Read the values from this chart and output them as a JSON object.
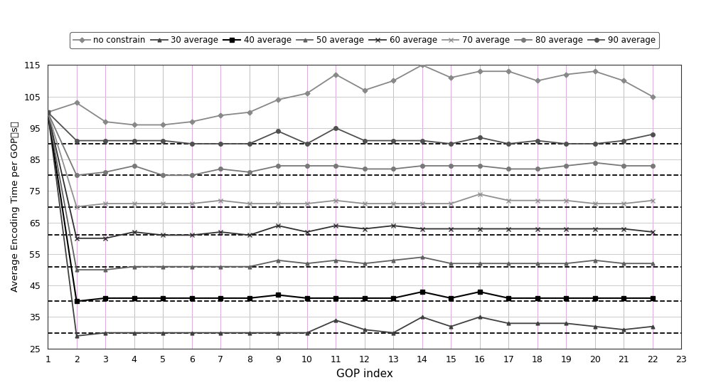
{
  "title": "",
  "xlabel": "GOP index",
  "ylabel": "Average Encoding Time per GOP（s）",
  "xlim": [
    1,
    23
  ],
  "ylim": [
    25,
    115
  ],
  "xticks": [
    1,
    2,
    3,
    4,
    5,
    6,
    7,
    8,
    9,
    10,
    11,
    12,
    13,
    14,
    15,
    16,
    17,
    18,
    19,
    20,
    21,
    22,
    23
  ],
  "yticks": [
    25,
    35,
    45,
    55,
    65,
    75,
    85,
    95,
    105,
    115
  ],
  "series": {
    "no constrain": {
      "color": "#888888",
      "linewidth": 1.3,
      "linestyle": "-",
      "marker": "D",
      "markersize": 3.5,
      "dashed_avg": null,
      "values": [
        100,
        103,
        97,
        96,
        96,
        97,
        99,
        100,
        104,
        106,
        112,
        107,
        110,
        115,
        111,
        113,
        113,
        110,
        112,
        113,
        110,
        105
      ]
    },
    "30 average": {
      "color": "#404040",
      "linewidth": 1.3,
      "linestyle": "-",
      "marker": "^",
      "markersize": 3.5,
      "dashed_avg": 30,
      "values": [
        100,
        29,
        30,
        30,
        30,
        30,
        30,
        30,
        30,
        30,
        34,
        31,
        30,
        35,
        32,
        35,
        33,
        33,
        33,
        32,
        31,
        32
      ]
    },
    "40 average": {
      "color": "#000000",
      "linewidth": 1.5,
      "linestyle": "-",
      "marker": "s",
      "markersize": 4.5,
      "dashed_avg": 40,
      "values": [
        100,
        40,
        41,
        41,
        41,
        41,
        41,
        41,
        42,
        41,
        41,
        41,
        41,
        43,
        41,
        43,
        41,
        41,
        41,
        41,
        41,
        41
      ]
    },
    "50 average": {
      "color": "#606060",
      "linewidth": 1.3,
      "linestyle": "-",
      "marker": "^",
      "markersize": 3.5,
      "dashed_avg": 51,
      "values": [
        100,
        50,
        50,
        51,
        51,
        51,
        51,
        51,
        53,
        52,
        53,
        52,
        53,
        54,
        52,
        52,
        52,
        52,
        52,
        53,
        52,
        52
      ]
    },
    "60 average": {
      "color": "#303030",
      "linewidth": 1.3,
      "linestyle": "-",
      "marker": "x",
      "markersize": 4,
      "dashed_avg": 61,
      "values": [
        100,
        60,
        60,
        62,
        61,
        61,
        62,
        61,
        64,
        62,
        64,
        63,
        64,
        63,
        63,
        63,
        63,
        63,
        63,
        63,
        63,
        62
      ]
    },
    "70 average": {
      "color": "#909090",
      "linewidth": 1.3,
      "linestyle": "-",
      "marker": "x",
      "markersize": 4,
      "dashed_avg": 70,
      "values": [
        100,
        70,
        71,
        71,
        71,
        71,
        72,
        71,
        71,
        71,
        72,
        71,
        71,
        71,
        71,
        74,
        72,
        72,
        72,
        71,
        71,
        72
      ]
    },
    "80 average": {
      "color": "#787878",
      "linewidth": 1.3,
      "linestyle": "-",
      "marker": "o",
      "markersize": 4,
      "dashed_avg": 80,
      "values": [
        100,
        80,
        81,
        83,
        80,
        80,
        82,
        81,
        83,
        83,
        83,
        82,
        82,
        83,
        83,
        83,
        82,
        82,
        83,
        84,
        83,
        83
      ]
    },
    "90 average": {
      "color": "#505050",
      "linewidth": 1.3,
      "linestyle": "-",
      "marker": "o",
      "markersize": 4,
      "dashed_avg": 90,
      "values": [
        100,
        91,
        91,
        91,
        91,
        90,
        90,
        90,
        94,
        90,
        95,
        91,
        91,
        91,
        90,
        92,
        90,
        91,
        90,
        90,
        91,
        93
      ]
    }
  },
  "legend_order": [
    "no constrain",
    "30 average",
    "40 average",
    "50 average",
    "60 average",
    "70 average",
    "80 average",
    "90 average"
  ],
  "grid_color_h": "#cccccc",
  "grid_color_v": "#ddaadd",
  "bg_color": "#ffffff",
  "dashed_color": "#000000"
}
